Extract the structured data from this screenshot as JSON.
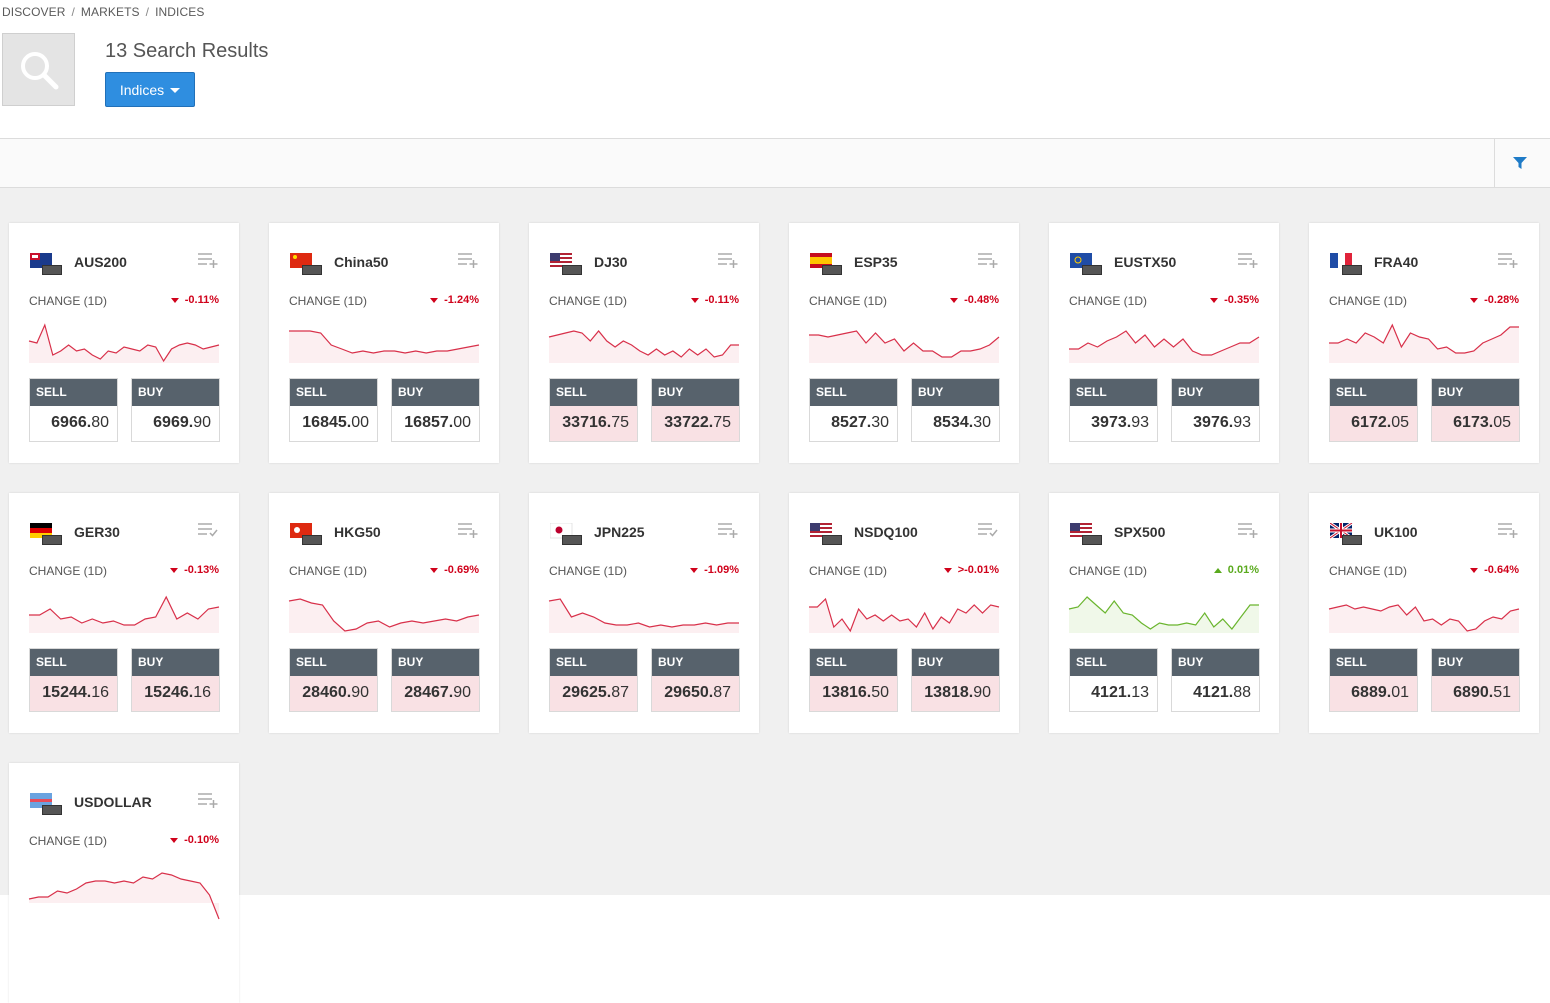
{
  "breadcrumb": [
    "DISCOVER",
    "MARKETS",
    "INDICES"
  ],
  "results_title": "13 Search Results",
  "dropdown_label": "Indices",
  "change_label": "CHANGE (1D)",
  "sell_label": "SELL",
  "buy_label": "BUY",
  "colors": {
    "negative": "#d0021b",
    "positive": "#5aaa1e",
    "accent": "#2f8ee0",
    "header": "#57626c"
  },
  "cards": [
    {
      "symbol": "AUS200",
      "flag": "AUS",
      "change": "-0.11%",
      "dir": "down",
      "sell_big": "6966.",
      "sell_small": "80",
      "buy_big": "6969.",
      "buy_small": "90",
      "price_dir": "",
      "watch": "add",
      "spark": [
        0.55,
        0.5,
        0.95,
        0.2,
        0.3,
        0.45,
        0.3,
        0.35,
        0.2,
        0.1,
        0.3,
        0.25,
        0.4,
        0.35,
        0.3,
        0.45,
        0.4,
        0.05,
        0.35,
        0.45,
        0.5,
        0.45,
        0.35,
        0.4,
        0.45
      ]
    },
    {
      "symbol": "China50",
      "flag": "CHN",
      "change": "-1.24%",
      "dir": "down",
      "sell_big": "16845.",
      "sell_small": "00",
      "buy_big": "16857.",
      "buy_small": "00",
      "price_dir": "",
      "watch": "add",
      "spark": [
        0.8,
        0.8,
        0.8,
        0.75,
        0.45,
        0.35,
        0.25,
        0.3,
        0.25,
        0.3,
        0.3,
        0.25,
        0.3,
        0.25,
        0.3,
        0.3,
        0.35,
        0.4,
        0.45
      ]
    },
    {
      "symbol": "DJ30",
      "flag": "USA",
      "change": "-0.11%",
      "dir": "down",
      "sell_big": "33716.",
      "sell_small": "75",
      "buy_big": "33722.",
      "buy_small": "75",
      "price_dir": "neg",
      "watch": "add",
      "spark": [
        0.65,
        0.7,
        0.75,
        0.8,
        0.75,
        0.55,
        0.8,
        0.55,
        0.4,
        0.55,
        0.45,
        0.3,
        0.2,
        0.35,
        0.2,
        0.3,
        0.15,
        0.35,
        0.2,
        0.35,
        0.15,
        0.2,
        0.45,
        0.45
      ]
    },
    {
      "symbol": "ESP35",
      "flag": "ESP",
      "change": "-0.48%",
      "dir": "down",
      "sell_big": "8527.",
      "sell_small": "30",
      "buy_big": "8534.",
      "buy_small": "30",
      "price_dir": "",
      "watch": "add",
      "spark": [
        0.7,
        0.7,
        0.65,
        0.7,
        0.75,
        0.8,
        0.5,
        0.75,
        0.5,
        0.6,
        0.3,
        0.5,
        0.3,
        0.3,
        0.15,
        0.15,
        0.3,
        0.3,
        0.35,
        0.45,
        0.65
      ]
    },
    {
      "symbol": "EUSTX50",
      "flag": "EUR",
      "change": "-0.35%",
      "dir": "down",
      "sell_big": "3973.",
      "sell_small": "93",
      "buy_big": "3976.",
      "buy_small": "93",
      "price_dir": "",
      "watch": "add",
      "spark": [
        0.35,
        0.35,
        0.5,
        0.4,
        0.55,
        0.65,
        0.8,
        0.5,
        0.7,
        0.4,
        0.6,
        0.4,
        0.6,
        0.3,
        0.2,
        0.2,
        0.3,
        0.4,
        0.5,
        0.5,
        0.65
      ]
    },
    {
      "symbol": "FRA40",
      "flag": "FRA",
      "change": "-0.28%",
      "dir": "down",
      "sell_big": "6172.",
      "sell_small": "05",
      "buy_big": "6173.",
      "buy_small": "05",
      "price_dir": "neg",
      "watch": "add",
      "spark": [
        0.5,
        0.5,
        0.6,
        0.5,
        0.75,
        0.65,
        0.5,
        0.95,
        0.4,
        0.75,
        0.65,
        0.6,
        0.35,
        0.4,
        0.25,
        0.25,
        0.3,
        0.5,
        0.6,
        0.7,
        0.9,
        0.9
      ]
    },
    {
      "symbol": "GER30",
      "flag": "GER",
      "change": "-0.13%",
      "dir": "down",
      "sell_big": "15244.",
      "sell_small": "16",
      "buy_big": "15246.",
      "buy_small": "16",
      "price_dir": "neg",
      "watch": "added",
      "spark": [
        0.45,
        0.45,
        0.6,
        0.35,
        0.4,
        0.25,
        0.35,
        0.25,
        0.3,
        0.2,
        0.2,
        0.35,
        0.4,
        0.9,
        0.35,
        0.5,
        0.35,
        0.6,
        0.65
      ]
    },
    {
      "symbol": "HKG50",
      "flag": "HKG",
      "change": "-0.69%",
      "dir": "down",
      "sell_big": "28460.",
      "sell_small": "90",
      "buy_big": "28467.",
      "buy_small": "90",
      "price_dir": "neg",
      "watch": "add",
      "spark": [
        0.8,
        0.85,
        0.75,
        0.7,
        0.3,
        0.05,
        0.1,
        0.25,
        0.3,
        0.15,
        0.25,
        0.3,
        0.25,
        0.3,
        0.35,
        0.3,
        0.4,
        0.45
      ]
    },
    {
      "symbol": "JPN225",
      "flag": "JPN",
      "change": "-1.09%",
      "dir": "down",
      "sell_big": "29625.",
      "sell_small": "87",
      "buy_big": "29650.",
      "buy_small": "87",
      "price_dir": "neg",
      "watch": "add",
      "spark": [
        0.8,
        0.85,
        0.4,
        0.5,
        0.4,
        0.25,
        0.2,
        0.2,
        0.25,
        0.15,
        0.2,
        0.15,
        0.2,
        0.2,
        0.25,
        0.2,
        0.25,
        0.25
      ]
    },
    {
      "symbol": "NSDQ100",
      "flag": "USA",
      "change": ">-0.01%",
      "dir": "down",
      "sell_big": "13816.",
      "sell_small": "50",
      "buy_big": "13818.",
      "buy_small": "90",
      "price_dir": "neg",
      "watch": "added",
      "spark": [
        0.65,
        0.65,
        0.85,
        0.15,
        0.35,
        0.05,
        0.6,
        0.35,
        0.45,
        0.3,
        0.45,
        0.3,
        0.35,
        0.15,
        0.5,
        0.1,
        0.4,
        0.25,
        0.6,
        0.5,
        0.7,
        0.5,
        0.7,
        0.65
      ]
    },
    {
      "symbol": "SPX500",
      "flag": "USA",
      "change": "0.01%",
      "dir": "up",
      "sell_big": "4121.",
      "sell_small": "13",
      "buy_big": "4121.",
      "buy_small": "88",
      "price_dir": "",
      "watch": "add",
      "spark": [
        0.6,
        0.65,
        0.9,
        0.7,
        0.5,
        0.8,
        0.5,
        0.45,
        0.25,
        0.1,
        0.25,
        0.2,
        0.2,
        0.25,
        0.2,
        0.5,
        0.15,
        0.35,
        0.1,
        0.4,
        0.7,
        0.7
      ]
    },
    {
      "symbol": "UK100",
      "flag": "UK",
      "change": "-0.64%",
      "dir": "down",
      "sell_big": "6889.",
      "sell_small": "01",
      "buy_big": "6890.",
      "buy_small": "51",
      "price_dir": "neg",
      "watch": "add",
      "spark": [
        0.6,
        0.65,
        0.7,
        0.6,
        0.65,
        0.6,
        0.55,
        0.65,
        0.7,
        0.45,
        0.65,
        0.3,
        0.35,
        0.2,
        0.35,
        0.3,
        0.05,
        0.1,
        0.3,
        0.4,
        0.35,
        0.55,
        0.6
      ]
    },
    {
      "symbol": "USDOLLAR",
      "flag": "USD",
      "change": "-0.10%",
      "dir": "down",
      "sell_big": "",
      "sell_small": "",
      "buy_big": "",
      "buy_small": "",
      "price_dir": "",
      "watch": "add",
      "spark": [
        0.1,
        0.15,
        0.15,
        0.3,
        0.25,
        0.35,
        0.5,
        0.55,
        0.55,
        0.5,
        0.55,
        0.5,
        0.65,
        0.6,
        0.75,
        0.7,
        0.6,
        0.55,
        0.5,
        0.2,
        -0.4
      ]
    }
  ]
}
